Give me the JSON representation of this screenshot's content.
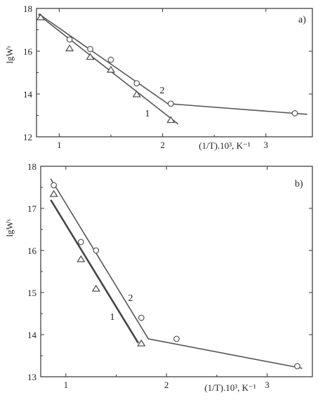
{
  "chart_data": [
    {
      "type": "scatter",
      "panel_label": "a)",
      "xlabel": "(1/T).10³, K⁻¹",
      "ylabel": "lgWˢ",
      "xlim": [
        0.78,
        3.45
      ],
      "ylim": [
        12,
        18
      ],
      "xticks": [
        1,
        2,
        3
      ],
      "yticks": [
        12,
        14,
        16,
        18
      ],
      "series": [
        {
          "name": "1",
          "marker": "triangle",
          "points": [
            [
              0.82,
              17.6
            ],
            [
              1.1,
              16.15
            ],
            [
              1.3,
              15.75
            ],
            [
              1.5,
              15.15
            ],
            [
              1.75,
              14.0
            ],
            [
              2.08,
              12.8
            ]
          ],
          "fit": [
            [
              0.8,
              17.7
            ],
            [
              2.15,
              12.6
            ]
          ]
        },
        {
          "name": "2",
          "marker": "circle",
          "points": [
            [
              1.1,
              16.55
            ],
            [
              1.3,
              16.1
            ],
            [
              1.5,
              15.6
            ],
            [
              1.75,
              14.5
            ],
            [
              2.08,
              13.55
            ],
            [
              3.28,
              13.1
            ]
          ],
          "fit": [
            [
              0.8,
              17.75
            ],
            [
              2.05,
              13.55
            ],
            [
              3.4,
              13.05
            ]
          ]
        }
      ]
    },
    {
      "type": "scatter",
      "panel_label": "b)",
      "xlabel": "(1/T).10³, K⁻¹",
      "ylabel": "lgWˢ",
      "xlim": [
        0.75,
        3.45
      ],
      "ylim": [
        13,
        18
      ],
      "xticks": [
        1,
        2,
        3
      ],
      "yticks": [
        13,
        14,
        15,
        16,
        17,
        18
      ],
      "series": [
        {
          "name": "1",
          "marker": "triangle",
          "points": [
            [
              0.88,
              17.35
            ],
            [
              1.15,
              15.8
            ],
            [
              1.3,
              15.1
            ],
            [
              1.75,
              13.8
            ]
          ],
          "fit": [
            [
              0.85,
              17.2
            ],
            [
              1.72,
              13.8
            ]
          ],
          "fit_bold": true
        },
        {
          "name": "2",
          "marker": "circle",
          "points": [
            [
              0.88,
              17.55
            ],
            [
              1.15,
              16.2
            ],
            [
              1.3,
              16.0
            ],
            [
              1.75,
              14.4
            ],
            [
              2.1,
              13.9
            ],
            [
              3.3,
              13.25
            ]
          ],
          "fit": [
            [
              0.85,
              17.7
            ],
            [
              1.82,
              13.9
            ],
            [
              3.35,
              13.2
            ]
          ]
        }
      ]
    }
  ]
}
